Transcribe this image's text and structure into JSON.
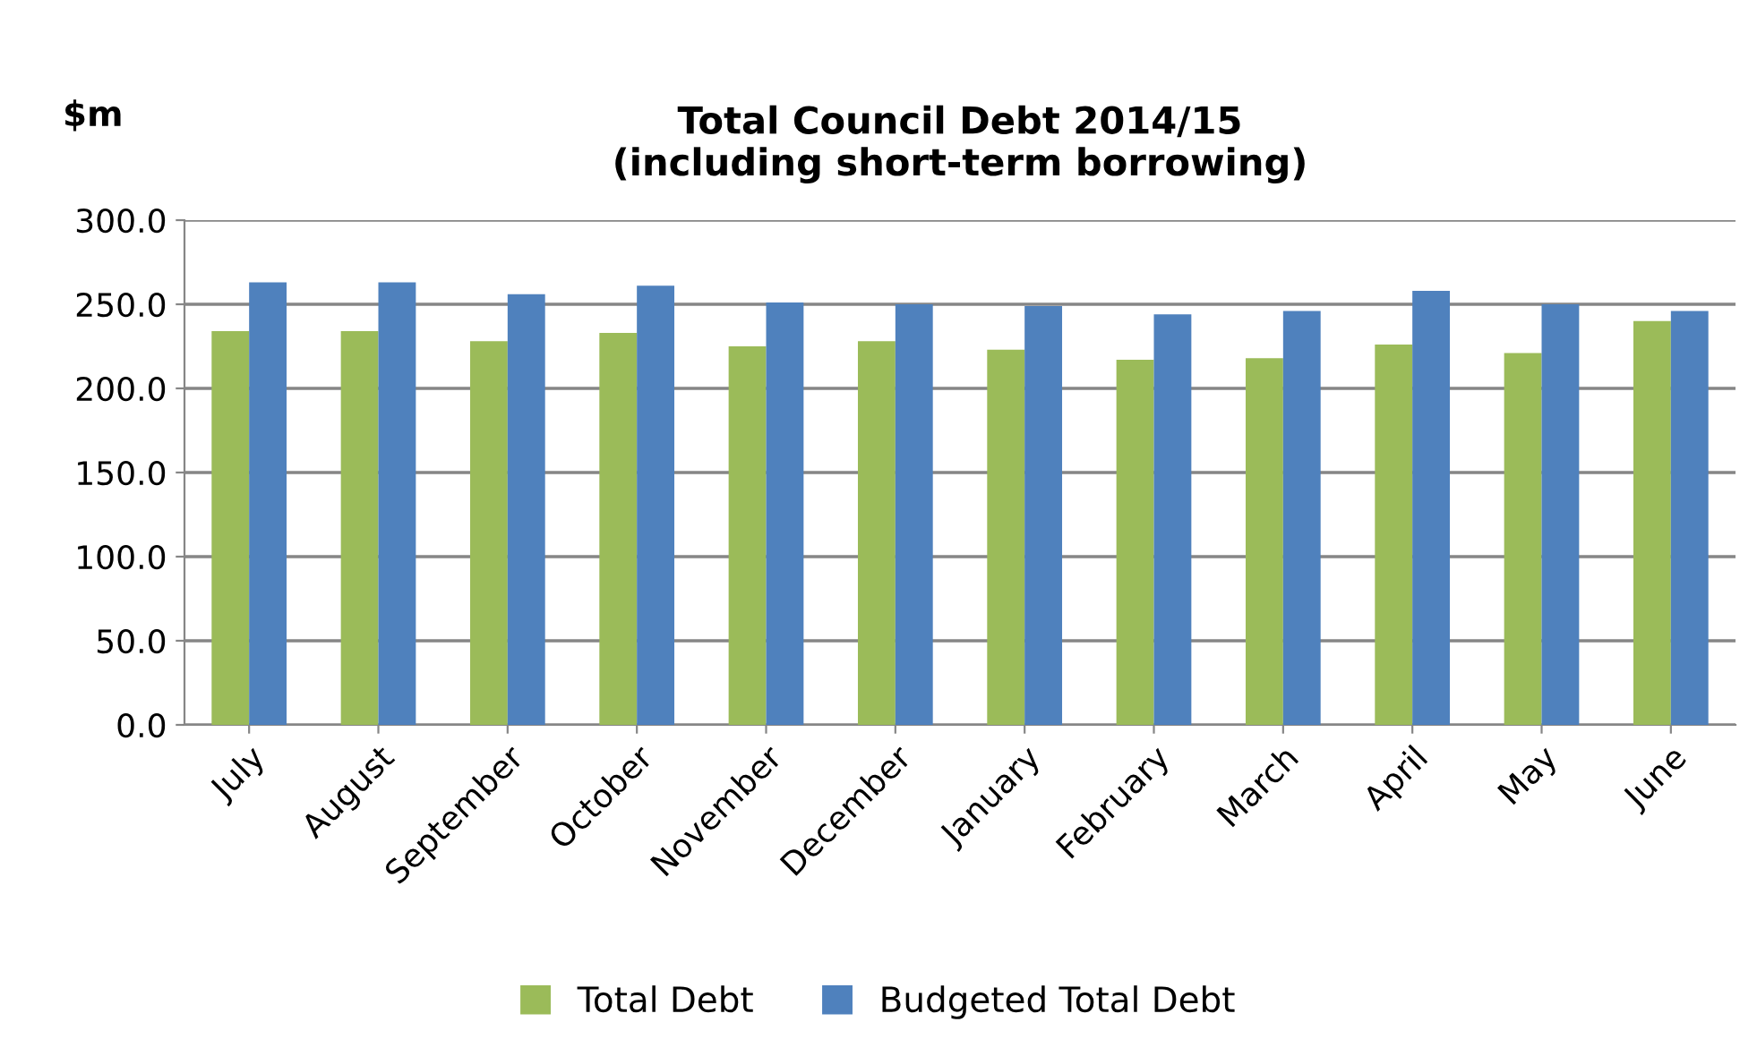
{
  "chart_data": {
    "type": "bar",
    "title": "Total Council Debt 2014/15\n(including short-term borrowing)",
    "ylabel": "$m",
    "categories": [
      "July",
      "August",
      "September",
      "October",
      "November",
      "December",
      "January",
      "February",
      "March",
      "April",
      "May",
      "June"
    ],
    "series": [
      {
        "name": "Total Debt",
        "color": "#9bbb59",
        "values": [
          234,
          234,
          228,
          233,
          225,
          228,
          223,
          217,
          218,
          226,
          221,
          240
        ]
      },
      {
        "name": "Budgeted Total Debt",
        "color": "#4f81bd",
        "values": [
          263,
          263,
          256,
          261,
          251,
          250,
          249,
          244,
          246,
          258,
          250,
          246
        ]
      }
    ],
    "ylim": [
      0,
      300
    ],
    "yticks": [
      {
        "value": 0,
        "label": "0.0"
      },
      {
        "value": 50,
        "label": "50.0"
      },
      {
        "value": 100,
        "label": "100.0"
      },
      {
        "value": 150,
        "label": "150.0"
      },
      {
        "value": 200,
        "label": "200.0"
      },
      {
        "value": 250,
        "label": "250.0"
      },
      {
        "value": 300,
        "label": "300.0"
      }
    ],
    "grid": "y",
    "legend": "bottom"
  }
}
